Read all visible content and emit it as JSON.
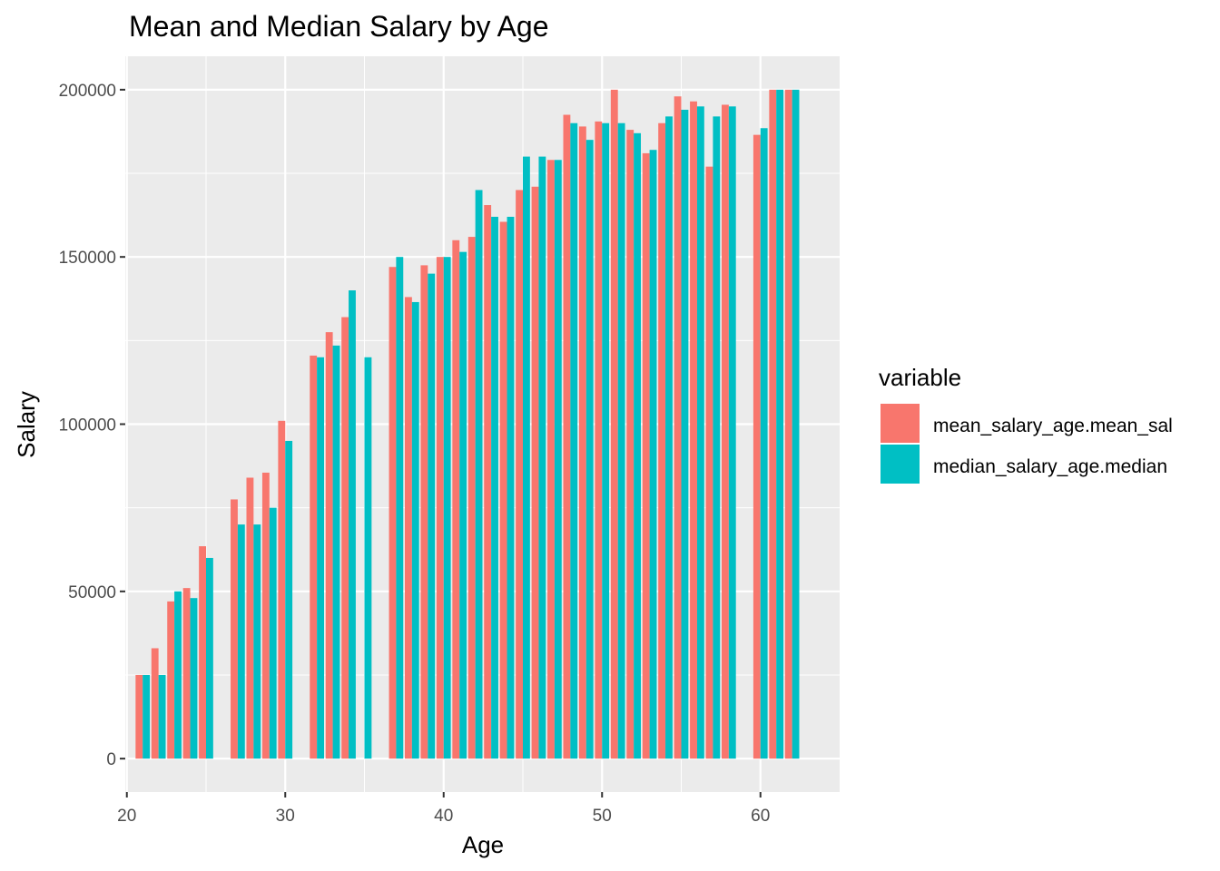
{
  "chart_data": {
    "type": "bar",
    "title": "Mean and Median Salary by Age",
    "xlabel": "Age",
    "ylabel": "Salary",
    "xlim": [
      19.9,
      65.0
    ],
    "ylim": [
      -10000,
      210000
    ],
    "x_ticks": [
      20,
      30,
      40,
      50,
      60
    ],
    "y_ticks": [
      0,
      50000,
      100000,
      150000,
      200000
    ],
    "x_tick_labels": [
      "20",
      "30",
      "40",
      "50",
      "60"
    ],
    "y_tick_labels": [
      "0",
      "50000",
      "100000",
      "150000",
      "200000"
    ],
    "grid": true,
    "legend": {
      "title": "variable",
      "position": "right"
    },
    "x": [
      21,
      22,
      23,
      24,
      25,
      27,
      28,
      29,
      30,
      32,
      33,
      34,
      35,
      37,
      38,
      39,
      40,
      41,
      42,
      43,
      44,
      45,
      46,
      47,
      48,
      49,
      50,
      51,
      52,
      53,
      54,
      55,
      56,
      57,
      58,
      60,
      61,
      62
    ],
    "series": [
      {
        "name": "mean_salary_age.mean_sal",
        "color": "#F8766D",
        "values": [
          25000,
          33000,
          47000,
          51000,
          63500,
          77500,
          84000,
          85500,
          101000,
          120500,
          127500,
          132000,
          0,
          147000,
          138000,
          147500,
          150000,
          155000,
          156000,
          165500,
          160500,
          170000,
          171000,
          179000,
          192500,
          189000,
          190500,
          200000,
          188000,
          181000,
          190000,
          198000,
          196500,
          177000,
          195500,
          186500,
          200000,
          200000
        ]
      },
      {
        "name": "median_salary_age.median",
        "color": "#00BFC4",
        "values": [
          25000,
          25000,
          50000,
          48000,
          60000,
          70000,
          70000,
          75000,
          95000,
          120000,
          123500,
          140000,
          120000,
          150000,
          136500,
          145000,
          150000,
          151500,
          170000,
          162000,
          162000,
          180000,
          180000,
          179000,
          190000,
          185000,
          190000,
          190000,
          187000,
          182000,
          192000,
          194000,
          195000,
          192000,
          195000,
          188500,
          200000,
          200000
        ]
      }
    ]
  }
}
